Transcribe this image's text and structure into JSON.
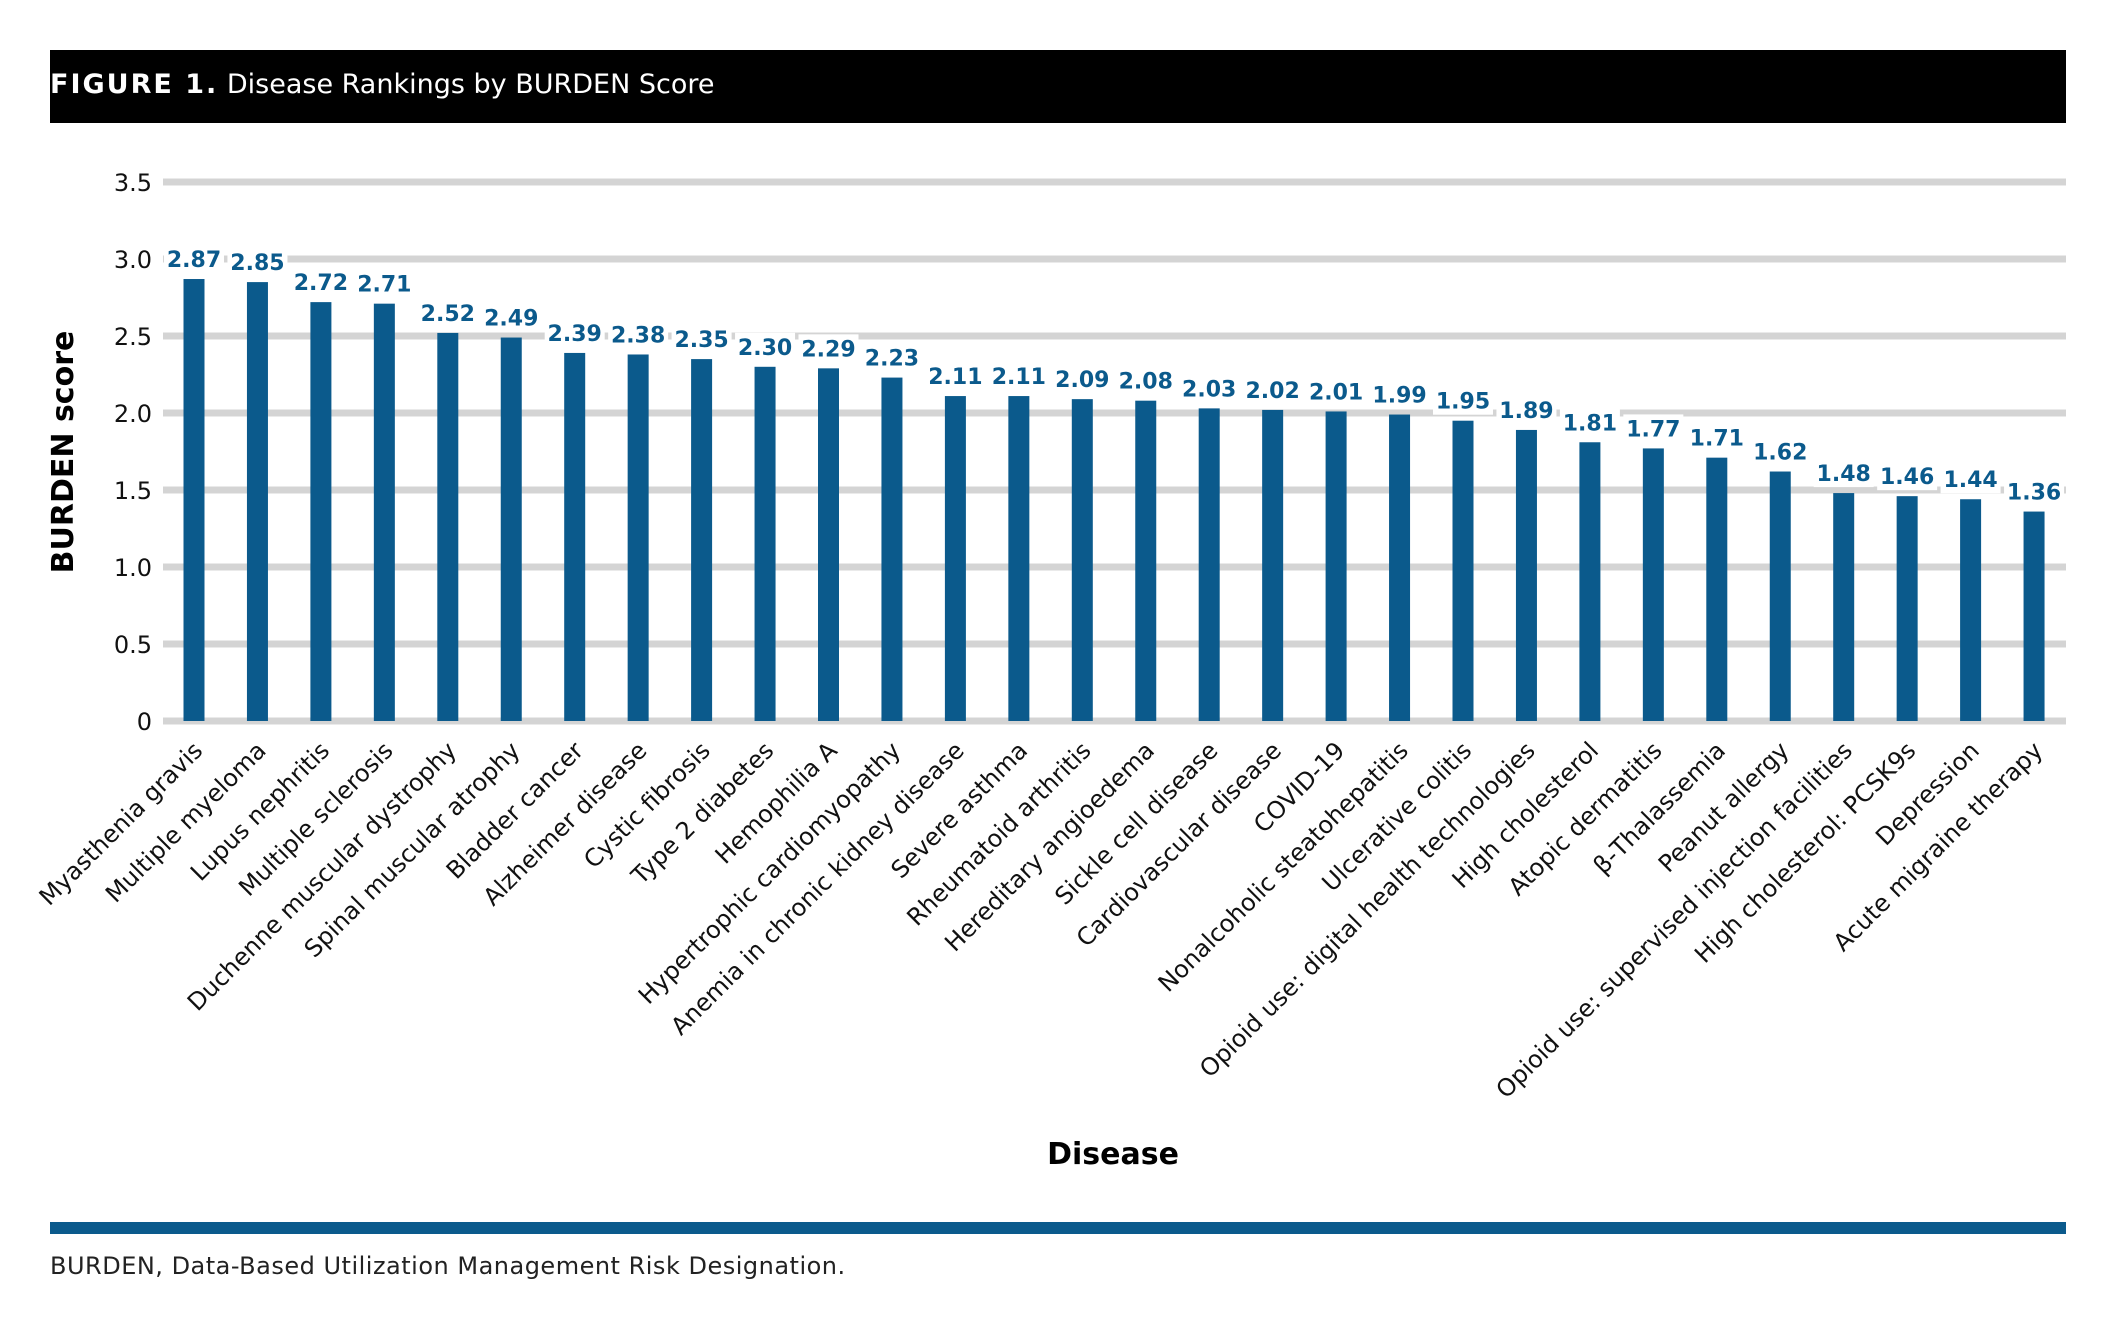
{
  "figure": {
    "label": "FIGURE 1.",
    "title": "Disease Rankings by BURDEN Score"
  },
  "footnote": "BURDEN, Data-Based Utilization Management Risk Designation.",
  "colors": {
    "bar": "#0b5a8c",
    "grid": "#d4d4d4",
    "header": "#000000",
    "footer_rule": "#0b5a8c"
  },
  "chart_data": {
    "type": "bar",
    "xlabel": "Disease",
    "ylabel": "BURDEN score",
    "ylim": [
      0,
      3.5
    ],
    "yticks": [
      0,
      0.5,
      1.0,
      1.5,
      2.0,
      2.5,
      3.0,
      3.5
    ],
    "ytick_labels": [
      "0",
      "0.5",
      "1.0",
      "1.5",
      "2.0",
      "2.5",
      "3.0",
      "3.5"
    ],
    "grid": true,
    "categories": [
      "Myasthenia gravis",
      "Multiple myeloma",
      "Lupus nephritis",
      "Multiple sclerosis",
      "Duchenne muscular dystrophy",
      "Spinal muscular atrophy",
      "Bladder cancer",
      "Alzheimer disease",
      "Cystic fibrosis",
      "Type 2 diabetes",
      "Hemophilia A",
      "Hypertrophic cardiomyopathy",
      "Anemia in chronic kidney disease",
      "Severe asthma",
      "Rheumatoid arthritis",
      "Hereditary angioedema",
      "Sickle cell disease",
      "Cardiovascular disease",
      "COVID-19",
      "Nonalcoholic steatohepatitis",
      "Ulcerative colitis",
      "Opioid use: digital health technologies",
      "High cholesterol",
      "Atopic dermatitis",
      "β-Thalassemia",
      "Peanut allergy",
      "Opioid use: supervised injection facilities",
      "High cholesterol: PCSK9s",
      "Depression",
      "Acute migraine therapy"
    ],
    "values": [
      2.87,
      2.85,
      2.72,
      2.71,
      2.52,
      2.49,
      2.39,
      2.38,
      2.35,
      2.3,
      2.29,
      2.23,
      2.11,
      2.11,
      2.09,
      2.08,
      2.03,
      2.02,
      2.01,
      1.99,
      1.95,
      1.89,
      1.81,
      1.77,
      1.71,
      1.62,
      1.48,
      1.46,
      1.44,
      1.36
    ],
    "value_labels": [
      "2.87",
      "2.85",
      "2.72",
      "2.71",
      "2.52",
      "2.49",
      "2.39",
      "2.38",
      "2.35",
      "2.30",
      "2.29",
      "2.23",
      "2.11",
      "2.11",
      "2.09",
      "2.08",
      "2.03",
      "2.02",
      "2.01",
      "1.99",
      "1.95",
      "1.89",
      "1.81",
      "1.77",
      "1.71",
      "1.62",
      "1.48",
      "1.46",
      "1.44",
      "1.36"
    ]
  }
}
